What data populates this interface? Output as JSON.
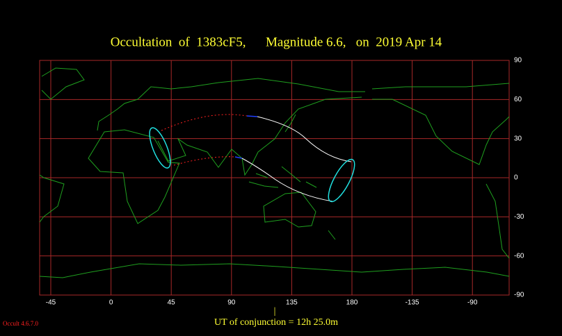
{
  "header": {
    "title": "Occultation  of  1383cF5,      Magnitude 6.6,   on  2019 Apr 14"
  },
  "map": {
    "lon_labels": [
      "-45",
      "0",
      "45",
      "90",
      "135",
      "180",
      "-135",
      "-90"
    ],
    "lat_labels": [
      "90",
      "60",
      "30",
      "0",
      "-30",
      "-60",
      "-90"
    ]
  },
  "footer": {
    "marker": "|",
    "conjunction": "UT of conjunction = 12h 25.0m",
    "version": "Occult 4.6.7.0"
  }
}
